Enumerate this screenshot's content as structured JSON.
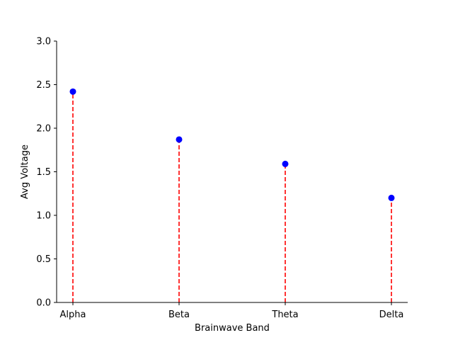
{
  "chart_data": {
    "type": "lollipop",
    "title": "",
    "xlabel": "Brainwave Band",
    "ylabel": "Avg Voltage",
    "categories": [
      "Alpha",
      "Beta",
      "Theta",
      "Delta"
    ],
    "values": [
      2.42,
      1.87,
      1.59,
      1.2
    ],
    "ylim": [
      0,
      3.0
    ],
    "yticks": [
      "0.0",
      "0.5",
      "1.0",
      "1.5",
      "2.0",
      "2.5",
      "3.0"
    ],
    "grid": false,
    "legend": "none",
    "colors": {
      "marker": "#0000ff",
      "stem": "#ff0000",
      "axis": "#000000"
    }
  }
}
